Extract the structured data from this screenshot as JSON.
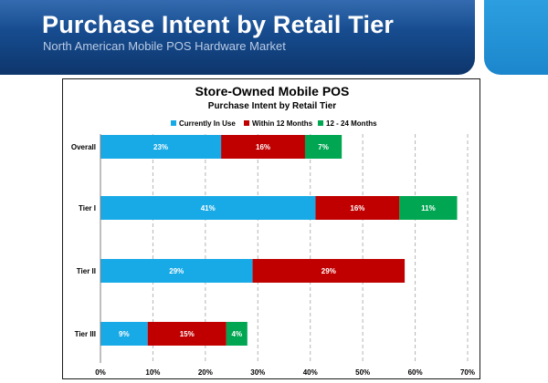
{
  "slide": {
    "title": "Purchase Intent by Retail Tier",
    "subtitle": "North American Mobile POS Hardware Market"
  },
  "colors": {
    "banner": "#144787",
    "accent": "#1c86cc",
    "series": [
      "#18aae6",
      "#c00000",
      "#00a651"
    ]
  },
  "chart_data": {
    "type": "bar",
    "orientation": "horizontal",
    "stacked": true,
    "title": "Store-Owned Mobile POS",
    "subtitle": "Purchase Intent by Retail Tier",
    "categories": [
      "Overall",
      "Tier I",
      "Tier II",
      "Tier III"
    ],
    "series": [
      {
        "name": "Currently In Use",
        "values": [
          23,
          41,
          29,
          9
        ],
        "labels": [
          "23%",
          "41%",
          "29%",
          "9%"
        ]
      },
      {
        "name": "Within 12 Months",
        "values": [
          16,
          16,
          29,
          15
        ],
        "labels": [
          "16%",
          "16%",
          "29%",
          "15%"
        ]
      },
      {
        "name": "12 - 24 Months",
        "values": [
          7,
          11,
          0,
          4
        ],
        "labels": [
          "7%",
          "11%",
          "",
          "4%"
        ]
      }
    ],
    "xlim": [
      0,
      70
    ],
    "xticks": [
      "0%",
      "10%",
      "20%",
      "30%",
      "40%",
      "50%",
      "60%",
      "70%"
    ],
    "grid": "vertical dashed",
    "legend": "top"
  }
}
